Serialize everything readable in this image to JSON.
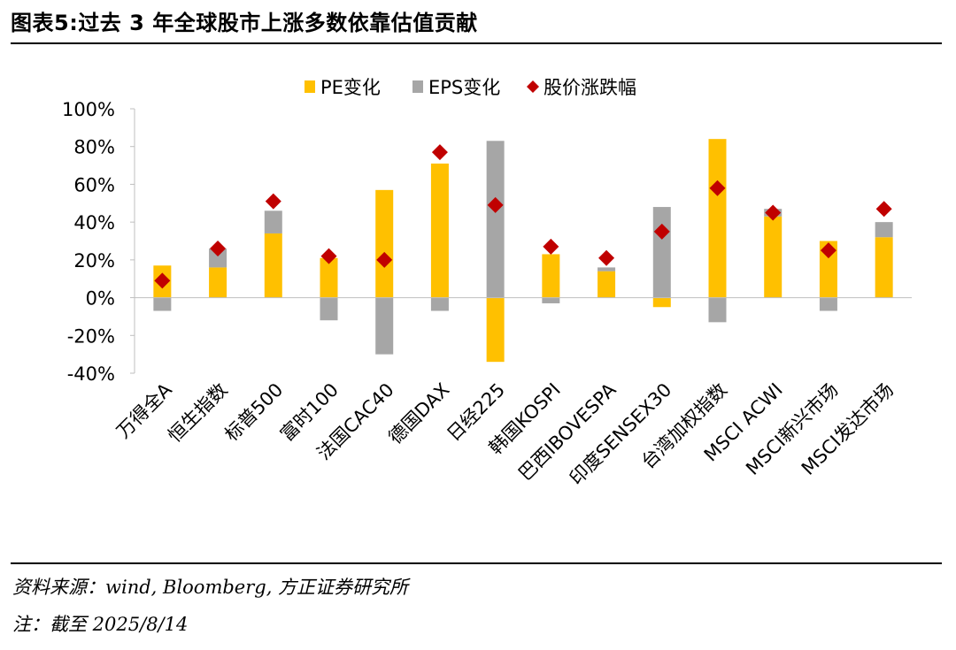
{
  "header": {
    "title": "图表5:过去 3 年全球股市上涨多数依靠估值贡献"
  },
  "footer": {
    "source": "资料来源：wind, Bloomberg, 方正证券研究所",
    "note": "注：截至 2025/8/14"
  },
  "colors": {
    "pe": "#FFC000",
    "eps": "#A6A6A6",
    "price": "#C00000",
    "axis": "#bfbfbf"
  },
  "chart_data": {
    "type": "bar",
    "stacked": true,
    "categories": [
      "万得全A",
      "恒生指数",
      "标普500",
      "富时100",
      "法国CAC40",
      "德国DAX",
      "日经225",
      "韩国KOSPI",
      "巴西IBOVESPA",
      "印度SENSEX30",
      "台湾加权指数",
      "MSCI ACWI",
      "MSCI新兴市场",
      "MSCI发达市场"
    ],
    "series": [
      {
        "name": "PE变化",
        "type": "bar",
        "values": [
          17,
          16,
          34,
          21,
          57,
          71,
          -34,
          23,
          14,
          -5,
          84,
          43,
          30,
          32
        ]
      },
      {
        "name": "EPS变化",
        "type": "bar",
        "values": [
          -7,
          10,
          12,
          -12,
          -30,
          -7,
          83,
          -3,
          2,
          48,
          -13,
          4,
          -7,
          8
        ]
      },
      {
        "name": "股价涨跌幅",
        "type": "marker",
        "values": [
          9,
          26,
          51,
          22,
          20,
          77,
          49,
          27,
          21,
          35,
          58,
          45,
          25,
          47
        ]
      }
    ],
    "yticks": [
      "100%",
      "80%",
      "60%",
      "40%",
      "20%",
      "0%",
      "-20%",
      "-40%"
    ],
    "ylim": [
      -40,
      100
    ],
    "legend": "top-center"
  }
}
